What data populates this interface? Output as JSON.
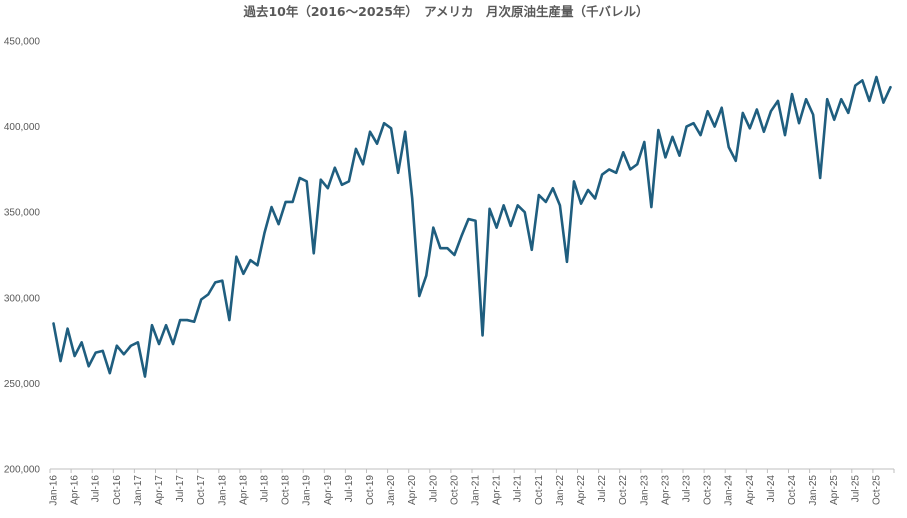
{
  "chart_data": {
    "type": "line",
    "title": "過去10年（2016～2025年）　アメリカ　月次原油生産量（千バレル）",
    "xlabel": "",
    "ylabel": "",
    "ylim": [
      200000,
      450000
    ],
    "yticks": [
      200000,
      250000,
      300000,
      350000,
      400000,
      450000
    ],
    "ytick_labels": [
      "200,000",
      "250,000",
      "300,000",
      "350,000",
      "400,000",
      "450,000"
    ],
    "grid": false,
    "legend": "none",
    "x_tick_labels": [
      "Jan-16",
      "Apr-16",
      "Jul-16",
      "Oct-16",
      "Jan-17",
      "Apr-17",
      "Jul-17",
      "Oct-17",
      "Jan-18",
      "Apr-18",
      "Jul-18",
      "Oct-18",
      "Jan-19",
      "Apr-19",
      "Jul-19",
      "Oct-19",
      "Jan-20",
      "Apr-20",
      "Jul-20",
      "Oct-20",
      "Jan-21",
      "Apr-21",
      "Jul-21",
      "Oct-21",
      "Jan-22",
      "Apr-22",
      "Jul-22",
      "Oct-22",
      "Jan-23",
      "Apr-23",
      "Jul-23",
      "Oct-23",
      "Jan-24",
      "Apr-24",
      "Jul-24",
      "Oct-24",
      "Jan-25",
      "Apr-25",
      "Jul-25",
      "Oct-25"
    ],
    "series": [
      {
        "color": "#1f5e7f",
        "values": [
          285000,
          263000,
          282000,
          266000,
          274000,
          260000,
          268000,
          269000,
          256000,
          272000,
          267000,
          272000,
          274000,
          254000,
          284000,
          273000,
          284000,
          273000,
          287000,
          287000,
          286000,
          299000,
          302000,
          309000,
          310000,
          287000,
          324000,
          314000,
          322000,
          319000,
          338000,
          353000,
          343000,
          356000,
          356000,
          370000,
          368000,
          326000,
          369000,
          364000,
          376000,
          366000,
          368000,
          387000,
          378000,
          397000,
          390000,
          402000,
          399000,
          373000,
          397000,
          358000,
          301000,
          313000,
          341000,
          329000,
          329000,
          325000,
          336000,
          346000,
          345000,
          278000,
          352000,
          341000,
          354000,
          342000,
          354000,
          350000,
          328000,
          360000,
          356000,
          364000,
          354000,
          321000,
          368000,
          355000,
          363000,
          358000,
          372000,
          375000,
          373000,
          385000,
          375000,
          378000,
          391000,
          353000,
          398000,
          382000,
          394000,
          383000,
          400000,
          402000,
          395000,
          409000,
          400000,
          411000,
          388000,
          380000,
          408000,
          399000,
          410000,
          397000,
          409000,
          415000,
          395000,
          419000,
          402000,
          416000,
          407000,
          370000,
          416000,
          404000,
          416000,
          408000,
          424000,
          427000,
          415000,
          429000,
          414000,
          423000
        ]
      }
    ]
  }
}
